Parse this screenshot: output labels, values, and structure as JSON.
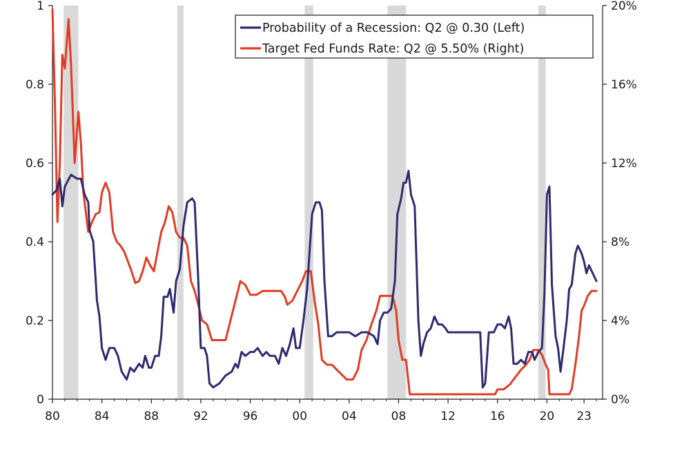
{
  "chart_data": {
    "type": "line",
    "x_axis": {
      "range": [
        1980,
        2024.5
      ],
      "ticks": [
        1980,
        1984,
        1988,
        1992,
        1996,
        2000,
        2004,
        2008,
        2012,
        2016,
        2020,
        2023
      ],
      "tick_labels": [
        "80",
        "84",
        "88",
        "92",
        "96",
        "00",
        "04",
        "08",
        "12",
        "16",
        "20",
        "23"
      ]
    },
    "y_left": {
      "range": [
        0,
        1
      ],
      "ticks": [
        0,
        0.2,
        0.4,
        0.6,
        0.8,
        1
      ],
      "tick_labels": [
        "0",
        "0.2",
        "0.4",
        "0.6",
        "0.8",
        "1"
      ]
    },
    "y_right": {
      "range": [
        0,
        20
      ],
      "ticks": [
        0,
        4,
        8,
        12,
        16,
        20
      ],
      "tick_labels": [
        "0%",
        "4%",
        "8%",
        "12%",
        "16%",
        "20%"
      ]
    },
    "recession_shading": [
      [
        1980.9,
        1982.1
      ],
      [
        1990.1,
        1990.6
      ],
      [
        2000.4,
        2001.1
      ],
      [
        2007.1,
        2008.6
      ],
      [
        2019.3,
        2019.9
      ]
    ],
    "recession_shading_color": "#d9d9d9",
    "legend_position": "top-right",
    "series": [
      {
        "name": "Probability of a Recession: Q2 @ 0.30 (Left)",
        "axis": "left",
        "color": "#2e2a6e",
        "points": [
          [
            1980.0,
            0.52
          ],
          [
            1980.3,
            0.53
          ],
          [
            1980.6,
            0.56
          ],
          [
            1980.8,
            0.49
          ],
          [
            1981.0,
            0.54
          ],
          [
            1981.5,
            0.57
          ],
          [
            1982.0,
            0.56
          ],
          [
            1982.3,
            0.56
          ],
          [
            1982.6,
            0.52
          ],
          [
            1982.9,
            0.5
          ],
          [
            1983.0,
            0.43
          ],
          [
            1983.3,
            0.4
          ],
          [
            1983.6,
            0.25
          ],
          [
            1983.8,
            0.21
          ],
          [
            1984.0,
            0.13
          ],
          [
            1984.3,
            0.1
          ],
          [
            1984.6,
            0.13
          ],
          [
            1985.0,
            0.13
          ],
          [
            1985.3,
            0.11
          ],
          [
            1985.6,
            0.07
          ],
          [
            1986.0,
            0.05
          ],
          [
            1986.3,
            0.08
          ],
          [
            1986.6,
            0.07
          ],
          [
            1987.0,
            0.09
          ],
          [
            1987.3,
            0.08
          ],
          [
            1987.5,
            0.11
          ],
          [
            1987.8,
            0.08
          ],
          [
            1988.0,
            0.08
          ],
          [
            1988.3,
            0.11
          ],
          [
            1988.6,
            0.11
          ],
          [
            1988.8,
            0.16
          ],
          [
            1989.0,
            0.26
          ],
          [
            1989.3,
            0.26
          ],
          [
            1989.5,
            0.28
          ],
          [
            1989.8,
            0.22
          ],
          [
            1990.0,
            0.3
          ],
          [
            1990.3,
            0.33
          ],
          [
            1990.6,
            0.44
          ],
          [
            1990.9,
            0.5
          ],
          [
            1991.3,
            0.51
          ],
          [
            1991.5,
            0.5
          ],
          [
            1991.8,
            0.3
          ],
          [
            1992.0,
            0.13
          ],
          [
            1992.3,
            0.13
          ],
          [
            1992.5,
            0.11
          ],
          [
            1992.7,
            0.04
          ],
          [
            1993.0,
            0.03
          ],
          [
            1993.5,
            0.04
          ],
          [
            1994.0,
            0.06
          ],
          [
            1994.5,
            0.07
          ],
          [
            1994.8,
            0.09
          ],
          [
            1995.0,
            0.08
          ],
          [
            1995.3,
            0.12
          ],
          [
            1995.6,
            0.11
          ],
          [
            1996.0,
            0.12
          ],
          [
            1996.3,
            0.12
          ],
          [
            1996.6,
            0.13
          ],
          [
            1997.0,
            0.11
          ],
          [
            1997.3,
            0.12
          ],
          [
            1997.6,
            0.11
          ],
          [
            1998.0,
            0.11
          ],
          [
            1998.3,
            0.09
          ],
          [
            1998.6,
            0.13
          ],
          [
            1998.9,
            0.11
          ],
          [
            1999.2,
            0.14
          ],
          [
            1999.5,
            0.18
          ],
          [
            1999.7,
            0.13
          ],
          [
            2000.0,
            0.13
          ],
          [
            2000.3,
            0.2
          ],
          [
            2000.6,
            0.28
          ],
          [
            2001.0,
            0.47
          ],
          [
            2001.3,
            0.5
          ],
          [
            2001.6,
            0.5
          ],
          [
            2001.8,
            0.48
          ],
          [
            2002.0,
            0.3
          ],
          [
            2002.3,
            0.16
          ],
          [
            2002.6,
            0.16
          ],
          [
            2003.0,
            0.17
          ],
          [
            2003.5,
            0.17
          ],
          [
            2004.0,
            0.17
          ],
          [
            2004.5,
            0.16
          ],
          [
            2005.0,
            0.17
          ],
          [
            2005.5,
            0.17
          ],
          [
            2006.0,
            0.16
          ],
          [
            2006.3,
            0.14
          ],
          [
            2006.5,
            0.2
          ],
          [
            2006.8,
            0.22
          ],
          [
            2007.1,
            0.22
          ],
          [
            2007.4,
            0.23
          ],
          [
            2007.7,
            0.3
          ],
          [
            2007.9,
            0.47
          ],
          [
            2008.2,
            0.51
          ],
          [
            2008.4,
            0.55
          ],
          [
            2008.6,
            0.55
          ],
          [
            2008.8,
            0.58
          ],
          [
            2009.0,
            0.52
          ],
          [
            2009.3,
            0.49
          ],
          [
            2009.6,
            0.2
          ],
          [
            2009.8,
            0.11
          ],
          [
            2010.0,
            0.14
          ],
          [
            2010.3,
            0.17
          ],
          [
            2010.6,
            0.18
          ],
          [
            2010.9,
            0.21
          ],
          [
            2011.2,
            0.19
          ],
          [
            2011.5,
            0.19
          ],
          [
            2011.8,
            0.18
          ],
          [
            2012.0,
            0.17
          ],
          [
            2012.3,
            0.17
          ],
          [
            2012.6,
            0.17
          ],
          [
            2013.0,
            0.17
          ],
          [
            2013.5,
            0.17
          ],
          [
            2014.0,
            0.17
          ],
          [
            2014.3,
            0.17
          ],
          [
            2014.6,
            0.17
          ],
          [
            2014.8,
            0.03
          ],
          [
            2015.0,
            0.04
          ],
          [
            2015.3,
            0.17
          ],
          [
            2015.7,
            0.17
          ],
          [
            2016.0,
            0.19
          ],
          [
            2016.3,
            0.19
          ],
          [
            2016.6,
            0.18
          ],
          [
            2016.9,
            0.21
          ],
          [
            2017.1,
            0.18
          ],
          [
            2017.3,
            0.09
          ],
          [
            2017.6,
            0.09
          ],
          [
            2017.9,
            0.1
          ],
          [
            2018.2,
            0.09
          ],
          [
            2018.5,
            0.12
          ],
          [
            2018.8,
            0.12
          ],
          [
            2019.0,
            0.1
          ],
          [
            2019.3,
            0.12
          ],
          [
            2019.6,
            0.13
          ],
          [
            2019.8,
            0.27
          ],
          [
            2020.0,
            0.52
          ],
          [
            2020.2,
            0.54
          ],
          [
            2020.4,
            0.29
          ],
          [
            2020.7,
            0.16
          ],
          [
            2020.9,
            0.13
          ],
          [
            2021.1,
            0.07
          ],
          [
            2021.3,
            0.12
          ],
          [
            2021.6,
            0.2
          ],
          [
            2021.8,
            0.28
          ],
          [
            2022.0,
            0.29
          ],
          [
            2022.3,
            0.37
          ],
          [
            2022.5,
            0.39
          ],
          [
            2022.8,
            0.37
          ],
          [
            2023.0,
            0.35
          ],
          [
            2023.2,
            0.32
          ],
          [
            2023.4,
            0.34
          ],
          [
            2023.7,
            0.32
          ],
          [
            2024.0,
            0.3
          ]
        ]
      },
      {
        "name": "Target Fed Funds Rate: Q2 @ 5.50% (Right)",
        "axis": "right",
        "color": "#e03c24",
        "points": [
          [
            1980.0,
            19.8
          ],
          [
            1980.2,
            15.0
          ],
          [
            1980.4,
            9.0
          ],
          [
            1980.6,
            12.0
          ],
          [
            1980.8,
            17.5
          ],
          [
            1981.0,
            16.8
          ],
          [
            1981.3,
            19.3
          ],
          [
            1981.5,
            17.0
          ],
          [
            1981.8,
            12.0
          ],
          [
            1982.1,
            14.6
          ],
          [
            1982.3,
            13.0
          ],
          [
            1982.5,
            10.5
          ],
          [
            1982.9,
            8.5
          ],
          [
            1983.2,
            9.0
          ],
          [
            1983.5,
            9.4
          ],
          [
            1983.8,
            9.5
          ],
          [
            1984.0,
            10.5
          ],
          [
            1984.3,
            11.0
          ],
          [
            1984.6,
            10.5
          ],
          [
            1984.9,
            8.5
          ],
          [
            1985.2,
            8.0
          ],
          [
            1985.5,
            7.8
          ],
          [
            1985.8,
            7.5
          ],
          [
            1986.1,
            7.0
          ],
          [
            1986.4,
            6.5
          ],
          [
            1986.7,
            5.9
          ],
          [
            1987.0,
            6.0
          ],
          [
            1987.3,
            6.5
          ],
          [
            1987.6,
            7.2
          ],
          [
            1987.9,
            6.8
          ],
          [
            1988.2,
            6.5
          ],
          [
            1988.5,
            7.5
          ],
          [
            1988.8,
            8.5
          ],
          [
            1989.1,
            9.0
          ],
          [
            1989.4,
            9.8
          ],
          [
            1989.7,
            9.5
          ],
          [
            1990.0,
            8.5
          ],
          [
            1990.3,
            8.2
          ],
          [
            1990.6,
            8.2
          ],
          [
            1990.9,
            7.8
          ],
          [
            1991.2,
            6.0
          ],
          [
            1991.5,
            5.5
          ],
          [
            1991.8,
            4.8
          ],
          [
            1992.1,
            4.0
          ],
          [
            1992.5,
            3.8
          ],
          [
            1992.9,
            3.0
          ],
          [
            1993.5,
            3.0
          ],
          [
            1994.0,
            3.0
          ],
          [
            1994.4,
            4.0
          ],
          [
            1994.8,
            5.0
          ],
          [
            1995.2,
            6.0
          ],
          [
            1995.6,
            5.8
          ],
          [
            1996.0,
            5.3
          ],
          [
            1996.5,
            5.3
          ],
          [
            1997.0,
            5.5
          ],
          [
            1997.5,
            5.5
          ],
          [
            1998.0,
            5.5
          ],
          [
            1998.5,
            5.5
          ],
          [
            1998.8,
            5.2
          ],
          [
            1999.0,
            4.8
          ],
          [
            1999.4,
            5.0
          ],
          [
            1999.8,
            5.5
          ],
          [
            2000.2,
            6.0
          ],
          [
            2000.5,
            6.5
          ],
          [
            2000.9,
            6.5
          ],
          [
            2001.2,
            5.0
          ],
          [
            2001.5,
            3.8
          ],
          [
            2001.8,
            2.0
          ],
          [
            2002.2,
            1.75
          ],
          [
            2002.6,
            1.75
          ],
          [
            2003.0,
            1.5
          ],
          [
            2003.4,
            1.25
          ],
          [
            2003.8,
            1.0
          ],
          [
            2004.3,
            1.0
          ],
          [
            2004.7,
            1.5
          ],
          [
            2005.0,
            2.5
          ],
          [
            2005.4,
            3.0
          ],
          [
            2005.8,
            3.8
          ],
          [
            2006.2,
            4.5
          ],
          [
            2006.5,
            5.25
          ],
          [
            2007.0,
            5.25
          ],
          [
            2007.5,
            5.25
          ],
          [
            2007.8,
            4.5
          ],
          [
            2008.0,
            3.0
          ],
          [
            2008.3,
            2.0
          ],
          [
            2008.6,
            2.0
          ],
          [
            2008.9,
            0.25
          ],
          [
            2010.0,
            0.25
          ],
          [
            2012.0,
            0.25
          ],
          [
            2014.0,
            0.25
          ],
          [
            2015.8,
            0.25
          ],
          [
            2016.0,
            0.5
          ],
          [
            2016.5,
            0.5
          ],
          [
            2017.0,
            0.75
          ],
          [
            2017.3,
            1.0
          ],
          [
            2017.6,
            1.25
          ],
          [
            2017.9,
            1.5
          ],
          [
            2018.3,
            1.75
          ],
          [
            2018.6,
            2.0
          ],
          [
            2018.9,
            2.5
          ],
          [
            2019.3,
            2.5
          ],
          [
            2019.6,
            2.25
          ],
          [
            2019.9,
            1.75
          ],
          [
            2020.1,
            1.5
          ],
          [
            2020.2,
            0.25
          ],
          [
            2021.0,
            0.25
          ],
          [
            2021.8,
            0.25
          ],
          [
            2022.0,
            0.5
          ],
          [
            2022.3,
            1.75
          ],
          [
            2022.6,
            3.25
          ],
          [
            2022.8,
            4.5
          ],
          [
            2023.0,
            4.75
          ],
          [
            2023.3,
            5.25
          ],
          [
            2023.6,
            5.5
          ],
          [
            2024.0,
            5.5
          ]
        ]
      }
    ]
  }
}
